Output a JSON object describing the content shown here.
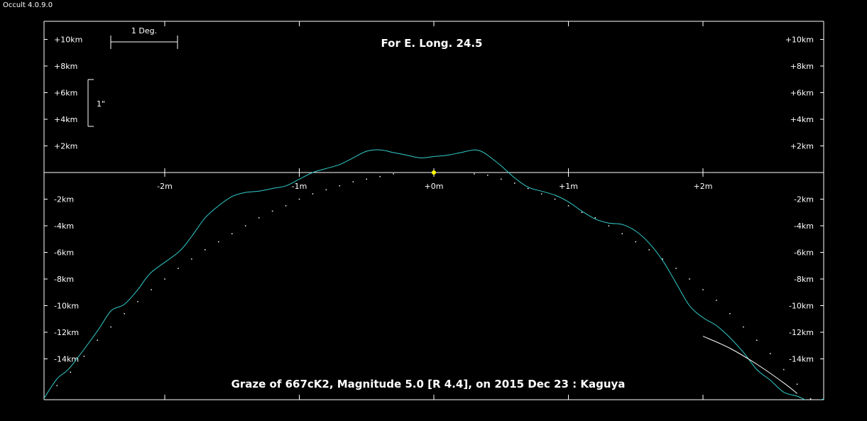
{
  "app": {
    "title": "Occult 4.0.9.0"
  },
  "chart_data": {
    "type": "line",
    "title": "For E. Long. 24.5",
    "subtitle": "Graze of  667cK2,  Magnitude 5.0 [R 4.4],  on 2015 Dec 23  :  Kaguya",
    "scale_bars": {
      "horizontal_label": "1 Deg.",
      "vertical_label": "1\""
    },
    "xlim": [
      -2.9,
      2.9
    ],
    "ylim": [
      -17,
      11.5
    ],
    "x_unit": "m",
    "y_unit": "km",
    "x_ticks": [
      {
        "value": -2,
        "label": "-2m"
      },
      {
        "value": -1,
        "label": "-1m"
      },
      {
        "value": 0,
        "label": "+0m"
      },
      {
        "value": 1,
        "label": "+1m"
      },
      {
        "value": 2,
        "label": "+2m"
      }
    ],
    "y_ticks": [
      {
        "value": 10,
        "label": "+10km"
      },
      {
        "value": 8,
        "label": "+8km"
      },
      {
        "value": 6,
        "label": "+6km"
      },
      {
        "value": 4,
        "label": "+4km"
      },
      {
        "value": 2,
        "label": "+2km"
      },
      {
        "value": -2,
        "label": "-2km"
      },
      {
        "value": -4,
        "label": "-4km"
      },
      {
        "value": -6,
        "label": "-6km"
      },
      {
        "value": -8,
        "label": "-8km"
      },
      {
        "value": -10,
        "label": "-10km"
      },
      {
        "value": -12,
        "label": "-12km"
      },
      {
        "value": -14,
        "label": "-14km"
      }
    ],
    "center_point": {
      "x": 0,
      "y": 0,
      "color": "#ffff00"
    },
    "series": [
      {
        "color": "#33cccc",
        "style": "line",
        "x": [
          -2.9,
          -2.8,
          -2.7,
          -2.5,
          -2.4,
          -2.3,
          -2.2,
          -2.1,
          -1.9,
          -1.8,
          -1.7,
          -1.6,
          -1.5,
          -1.4,
          -1.3,
          -1.2,
          -1.1,
          -1.0,
          -0.9,
          -0.8,
          -0.7,
          -0.6,
          -0.5,
          -0.4,
          -0.3,
          -0.2,
          -0.1,
          0.0,
          0.1,
          0.2,
          0.3,
          0.35,
          0.4,
          0.5,
          0.6,
          0.7,
          0.8,
          0.9,
          1.0,
          1.1,
          1.2,
          1.3,
          1.4,
          1.5,
          1.6,
          1.7,
          1.8,
          1.9,
          2.0,
          2.1,
          2.2,
          2.3,
          2.4,
          2.5,
          2.6,
          2.7,
          2.8,
          2.9
        ],
        "y": [
          -17.0,
          -15.5,
          -14.6,
          -11.9,
          -10.4,
          -9.9,
          -8.8,
          -7.5,
          -6.0,
          -4.8,
          -3.4,
          -2.5,
          -1.8,
          -1.5,
          -1.4,
          -1.2,
          -1.0,
          -0.5,
          0.0,
          0.3,
          0.6,
          1.1,
          1.6,
          1.7,
          1.5,
          1.3,
          1.1,
          1.2,
          1.3,
          1.5,
          1.7,
          1.6,
          1.3,
          0.5,
          -0.4,
          -1.1,
          -1.4,
          -1.7,
          -2.2,
          -2.9,
          -3.5,
          -3.8,
          -3.9,
          -4.4,
          -5.3,
          -6.6,
          -8.3,
          -10.0,
          -10.9,
          -11.5,
          -12.4,
          -13.5,
          -14.8,
          -15.6,
          -16.5,
          -16.8,
          -17.2,
          -17.0
        ]
      },
      {
        "color": "#ffffff",
        "style": "dotted",
        "x": [
          -2.8,
          -2.7,
          -2.6,
          -2.5,
          -2.4,
          -2.3,
          -2.2,
          -2.1,
          -2.0,
          -1.9,
          -1.8,
          -1.7,
          -1.6,
          -1.5,
          -1.4,
          -1.3,
          -1.2,
          -1.1,
          -1.0,
          -0.9,
          -0.8,
          -0.7,
          -0.6,
          -0.5,
          -0.4,
          -0.3,
          0.3,
          0.4,
          0.5,
          0.6,
          0.7,
          0.8,
          0.9,
          1.0,
          1.1,
          1.2,
          1.3,
          1.4,
          1.5,
          1.6,
          1.7,
          1.8,
          1.9,
          2.0,
          2.1,
          2.2,
          2.3,
          2.4,
          2.5,
          2.6,
          2.7,
          2.8
        ],
        "y": [
          -16.0,
          -15.0,
          -13.8,
          -12.6,
          -11.6,
          -10.6,
          -9.7,
          -8.8,
          -8.0,
          -7.2,
          -6.5,
          -5.8,
          -5.2,
          -4.6,
          -4.0,
          -3.4,
          -2.9,
          -2.5,
          -2.0,
          -1.6,
          -1.3,
          -1.0,
          -0.7,
          -0.5,
          -0.3,
          -0.1,
          -0.1,
          -0.2,
          -0.5,
          -0.8,
          -1.2,
          -1.6,
          -2.0,
          -2.5,
          -3.0,
          -3.4,
          -4.0,
          -4.6,
          -5.2,
          -5.8,
          -6.5,
          -7.2,
          -8.0,
          -8.8,
          -9.6,
          -10.6,
          -11.6,
          -12.6,
          -13.6,
          -14.8,
          -15.9,
          -17.0
        ]
      },
      {
        "color": "#ffffff",
        "style": "line",
        "x": [
          2.0,
          2.2,
          2.4,
          2.6,
          2.7
        ],
        "y": [
          -12.3,
          -13.2,
          -14.4,
          -15.8,
          -16.6
        ]
      }
    ]
  }
}
